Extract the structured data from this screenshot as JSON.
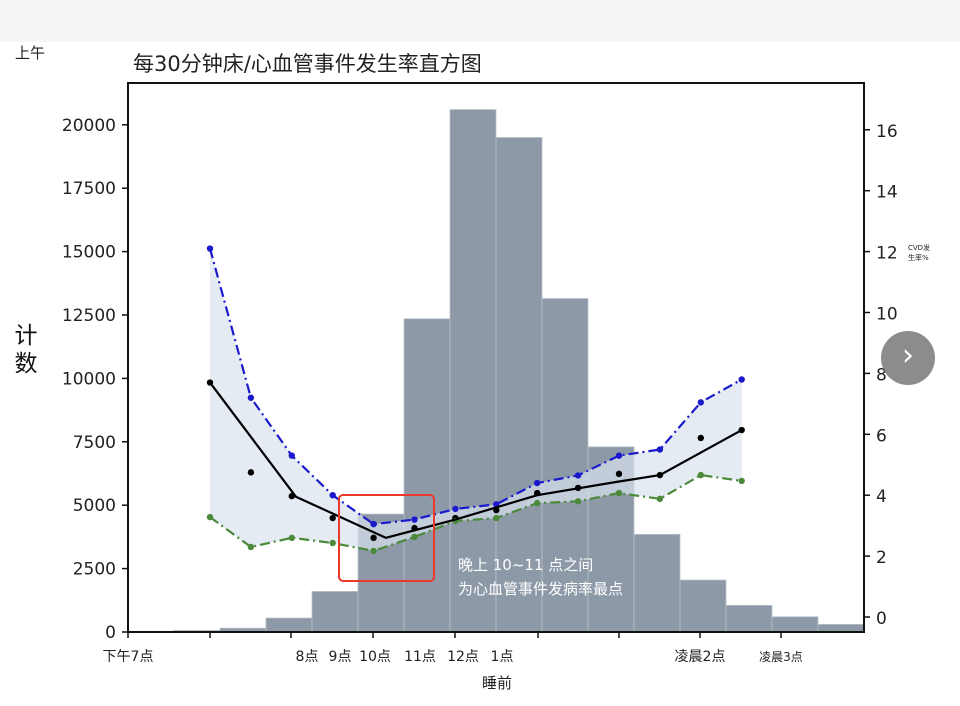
{
  "corner_label": "上午",
  "chart_data": {
    "type": "bar",
    "title": "每30分钟床/心血管事件发生率直方图",
    "xlabel": "睡前",
    "ylabel": "计数",
    "ylabel_right": "CVD发生率%",
    "ylim": [
      0,
      21500
    ],
    "ylim_right": [
      -0.5,
      17.5
    ],
    "yticks": [
      0,
      2500,
      5000,
      7500,
      10000,
      12500,
      15000,
      17500,
      20000
    ],
    "yticks_right": [
      0,
      2,
      4,
      6,
      8,
      10,
      12,
      14,
      16
    ],
    "xtick_labels": [
      "下午7点",
      "8点",
      "9点",
      "10点",
      "11点",
      "12点",
      "1点",
      "凌晨2点",
      "凌晨3点"
    ],
    "bar_values": [
      30,
      60,
      150,
      550,
      1600,
      4650,
      12350,
      20600,
      19500,
      13150,
      7300,
      3850,
      2050,
      1050,
      600,
      300
    ],
    "bar_color": "#8e99a8",
    "series": [
      {
        "style": "dash-dot",
        "color": "#1a1acc",
        "values": [
          12.1,
          7.2,
          5.3,
          4.0,
          3.05,
          3.2,
          3.55,
          3.7,
          4.4,
          4.65,
          5.3,
          5.5,
          7.05,
          7.8
        ]
      },
      {
        "style": "scatter",
        "color": "#000000",
        "values": [
          7.7,
          4.75,
          3.97,
          3.25,
          2.6,
          2.92,
          3.25,
          3.51,
          4.07,
          4.24,
          4.7,
          4.66,
          5.88,
          6.14
        ]
      },
      {
        "style": "dash-dot",
        "color": "#4a8a3a",
        "values": [
          3.28,
          2.3,
          2.6,
          2.43,
          2.17,
          2.63,
          3.15,
          3.25,
          3.74,
          3.8,
          4.07,
          3.88,
          4.66,
          4.47
        ]
      }
    ],
    "fit_line": {
      "color": "#000000",
      "points": [
        [
          0,
          7.7
        ],
        [
          2.1,
          3.95
        ],
        [
          4.3,
          2.6
        ],
        [
          6,
          3.2
        ],
        [
          8,
          4.0
        ],
        [
          10,
          4.45
        ],
        [
          11,
          4.66
        ],
        [
          13,
          6.14
        ]
      ]
    },
    "band_color": "#d8e2ee",
    "annotation": {
      "lines": [
        "晚上 10~11 点之间",
        "为心血管事件发病率最点"
      ],
      "box_color": "#e8392a"
    },
    "grid": false
  },
  "nav": {
    "next_label": "›"
  }
}
